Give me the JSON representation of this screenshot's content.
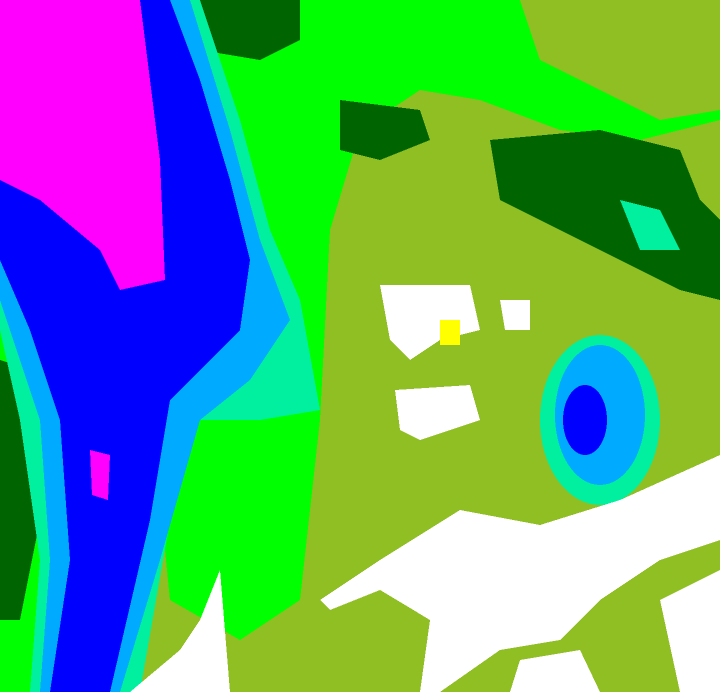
{
  "image": {
    "kind": "false-color classified raster",
    "palette": {
      "olive": "#8fbf22",
      "green": "#00ff00",
      "dark_green": "#006400",
      "aqua_green": "#00f0a0",
      "light_blue": "#00aaff",
      "blue": "#0000ff",
      "magenta": "#ff00ff",
      "white": "#ffffff",
      "yellow": "#ffff00"
    }
  }
}
